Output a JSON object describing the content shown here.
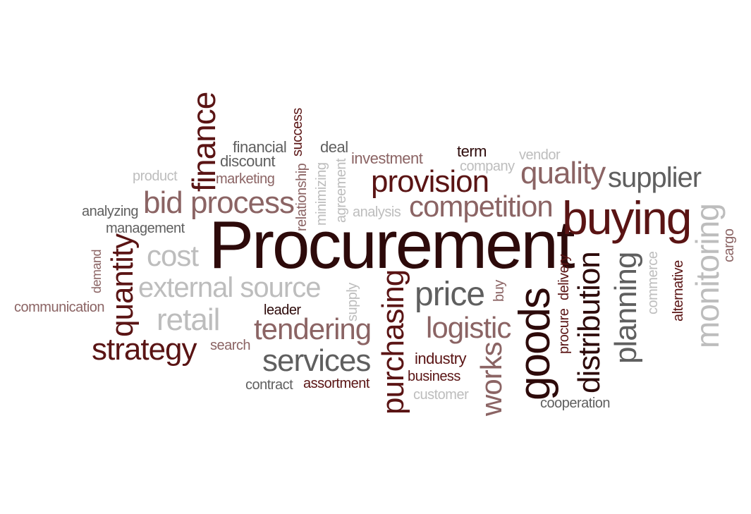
{
  "words": {
    "procurement": "Procurement",
    "buying": "buying",
    "goods": "goods",
    "competition": "competition",
    "provision": "provision",
    "quality": "quality",
    "supplier": "supplier",
    "bid_process": "bid process",
    "finance": "finance",
    "quantity": "quantity",
    "cost": "cost",
    "external_source": "external source",
    "retail": "retail",
    "strategy": "strategy",
    "tendering": "tendering",
    "services": "services",
    "purchasing": "purchasing",
    "price": "price",
    "logistic": "logistic",
    "works": "works",
    "distribution": "distribution",
    "planning": "planning",
    "monitoring": "monitoring",
    "communication": "communication",
    "demand": "demand",
    "analyzing": "analyzing",
    "management": "management",
    "product": "product",
    "marketing": "marketing",
    "discount": "discount",
    "financial": "financial",
    "success": "success",
    "relationship": "relationship",
    "minimizing": "minimizing",
    "agreement": "agreement",
    "deal": "deal",
    "investment": "investment",
    "analysis": "analysis",
    "term": "term",
    "company": "company",
    "vendor": "vendor",
    "leader": "leader",
    "supply": "supply",
    "search": "search",
    "contract": "contract",
    "assortment": "assortment",
    "industry": "industry",
    "business": "business",
    "customer": "customer",
    "buy": "buy",
    "procure": "procure",
    "delivery": "delivery",
    "cooperation": "cooperation",
    "commerce": "commerce",
    "alternative": "alternative",
    "cargo": "cargo"
  }
}
